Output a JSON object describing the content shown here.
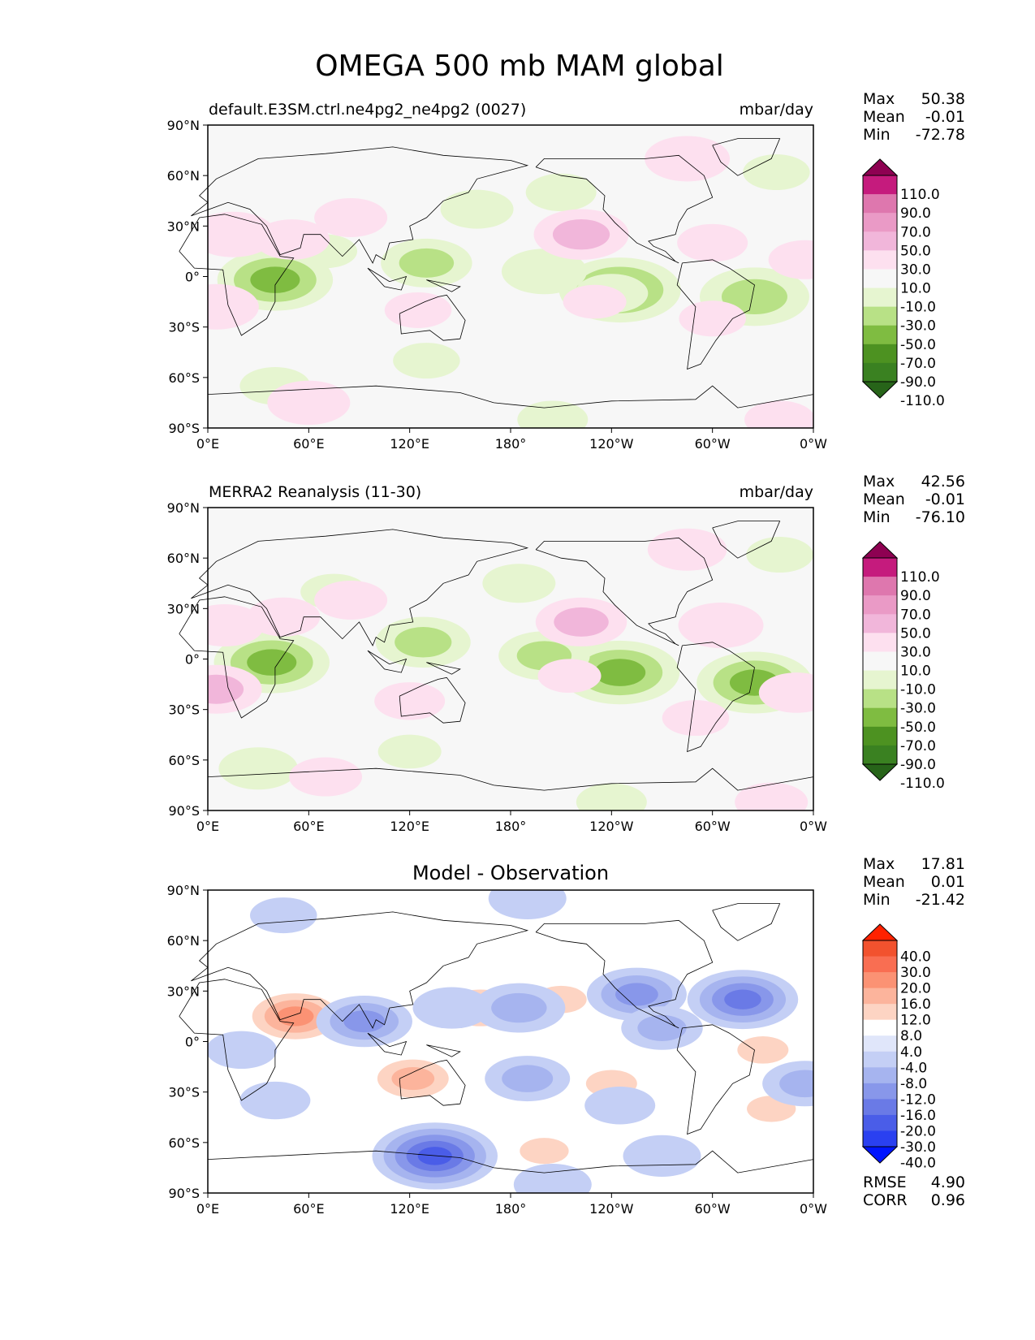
{
  "figure": {
    "title": "OMEGA 500 mb MAM global"
  },
  "axes": {
    "lat_ticks": [
      "90°N",
      "60°N",
      "30°N",
      "0°",
      "30°S",
      "60°S",
      "90°S"
    ],
    "lon_ticks": [
      "0°E",
      "60°E",
      "120°E",
      "180°",
      "120°W",
      "60°W",
      "0°W"
    ]
  },
  "panels": [
    {
      "id": "model",
      "title_left": "default.E3SM.ctrl.ne4pg2_ne4pg2 (0027)",
      "title_center": "",
      "units": "mbar/day",
      "stats": [
        {
          "label": "Max",
          "value": "50.38"
        },
        {
          "label": "Mean",
          "value": "-0.01"
        },
        {
          "label": "Min",
          "value": "-72.78"
        }
      ],
      "colorbar_labels": [
        "110.0",
        "90.0",
        "70.0",
        "50.0",
        "30.0",
        "10.0",
        "-10.0",
        "-30.0",
        "-50.0",
        "-70.0",
        "-90.0",
        "-110.0"
      ]
    },
    {
      "id": "observation",
      "title_left": "MERRA2 Reanalysis (11-30)",
      "title_center": "",
      "units": "mbar/day",
      "stats": [
        {
          "label": "Max",
          "value": "42.56"
        },
        {
          "label": "Mean",
          "value": "-0.01"
        },
        {
          "label": "Min",
          "value": "-76.10"
        }
      ],
      "colorbar_labels": [
        "110.0",
        "90.0",
        "70.0",
        "50.0",
        "30.0",
        "10.0",
        "-10.0",
        "-30.0",
        "-50.0",
        "-70.0",
        "-90.0",
        "-110.0"
      ]
    },
    {
      "id": "difference",
      "title_left": "",
      "title_center": "Model - Observation",
      "units": "",
      "stats": [
        {
          "label": "Max",
          "value": "17.81"
        },
        {
          "label": "Mean",
          "value": "0.01"
        },
        {
          "label": "Min",
          "value": "-21.42"
        }
      ],
      "colorbar_labels": [
        "40.0",
        "30.0",
        "20.0",
        "16.0",
        "12.0",
        "8.0",
        "4.0",
        "-4.0",
        "-8.0",
        "-12.0",
        "-16.0",
        "-20.0",
        "-30.0",
        "-40.0"
      ],
      "extra_stats": [
        {
          "label": "RMSE",
          "value": "4.90"
        },
        {
          "label": "CORR",
          "value": "0.96"
        }
      ]
    }
  ],
  "colors": {
    "omega_scale": [
      "#8e0152",
      "#c51b7d",
      "#de77ae",
      "#ea9ac6",
      "#f1b6da",
      "#fde0ef",
      "#f7f7f7",
      "#e6f5d0",
      "#b8e186",
      "#7fbc41",
      "#4d9221",
      "#3a8121",
      "#276419"
    ],
    "diff_scale": [
      "#ff2200",
      "#f2522e",
      "#f96e52",
      "#fb9274",
      "#fcb49c",
      "#fdd4c3",
      "#ffffff",
      "#e0e6fa",
      "#c4cff5",
      "#a6b4ef",
      "#8897ea",
      "#6a7ae6",
      "#4a5de8",
      "#2a40f0",
      "#0015ff"
    ],
    "land_outline": "#000000"
  },
  "chart_data": [
    {
      "type": "heatmap",
      "title": "default.E3SM.ctrl.ne4pg2_ne4pg2 (0027)",
      "units": "mbar/day",
      "xlabel": "",
      "ylabel": "",
      "xlim": [
        0,
        360
      ],
      "ylim": [
        -90,
        90
      ],
      "x_ticks": [
        "0°E",
        "60°E",
        "120°E",
        "180°",
        "120°W",
        "60°W",
        "0°W"
      ],
      "y_ticks": [
        "90°N",
        "60°N",
        "30°N",
        "0°",
        "30°S",
        "60°S",
        "90°S"
      ],
      "stats": {
        "max": 50.38,
        "mean": -0.01,
        "min": -72.78
      },
      "levels": [
        -110,
        -90,
        -70,
        -50,
        -30,
        -10,
        10,
        30,
        50,
        70,
        90,
        110
      ],
      "features": [
        {
          "lon": 40,
          "lat": -2,
          "value": -55
        },
        {
          "lon": 245,
          "lat": -8,
          "value": -60
        },
        {
          "lon": 325,
          "lat": -12,
          "value": -50
        },
        {
          "lon": 130,
          "lat": 8,
          "value": -35
        },
        {
          "lon": 200,
          "lat": 3,
          "value": -30
        },
        {
          "lon": 160,
          "lat": 40,
          "value": -20
        },
        {
          "lon": 210,
          "lat": 50,
          "value": -18
        },
        {
          "lon": 338,
          "lat": 62,
          "value": -15
        },
        {
          "lon": 40,
          "lat": -65,
          "value": -18
        },
        {
          "lon": 130,
          "lat": -50,
          "value": -15
        },
        {
          "lon": 205,
          "lat": -85,
          "value": -18
        },
        {
          "lon": 240,
          "lat": -10,
          "value": -20
        },
        {
          "lon": 70,
          "lat": 15,
          "value": -12
        },
        {
          "lon": 222,
          "lat": 25,
          "value": 38
        },
        {
          "lon": 15,
          "lat": 25,
          "value": 30
        },
        {
          "lon": 50,
          "lat": 22,
          "value": 22
        },
        {
          "lon": 5,
          "lat": -18,
          "value": 30
        },
        {
          "lon": 125,
          "lat": -20,
          "value": 15
        },
        {
          "lon": 300,
          "lat": 20,
          "value": 18
        },
        {
          "lon": 355,
          "lat": 10,
          "value": 20
        },
        {
          "lon": 300,
          "lat": -25,
          "value": 15
        },
        {
          "lon": 285,
          "lat": 70,
          "value": 30
        },
        {
          "lon": 340,
          "lat": -85,
          "value": 18
        },
        {
          "lon": 60,
          "lat": -75,
          "value": 28
        },
        {
          "lon": 85,
          "lat": 35,
          "value": 20
        },
        {
          "lon": 230,
          "lat": -15,
          "value": 12
        }
      ]
    },
    {
      "type": "heatmap",
      "title": "MERRA2 Reanalysis (11-30)",
      "units": "mbar/day",
      "xlabel": "",
      "ylabel": "",
      "xlim": [
        0,
        360
      ],
      "ylim": [
        -90,
        90
      ],
      "x_ticks": [
        "0°E",
        "60°E",
        "120°E",
        "180°",
        "120°W",
        "60°W",
        "0°W"
      ],
      "y_ticks": [
        "90°N",
        "60°N",
        "30°N",
        "0°",
        "30°S",
        "60°S",
        "90°S"
      ],
      "stats": {
        "max": 42.56,
        "mean": -0.01,
        "min": -76.1
      },
      "levels": [
        -110,
        -90,
        -70,
        -50,
        -30,
        -10,
        10,
        30,
        50,
        70,
        90,
        110
      ],
      "features": [
        {
          "lon": 38,
          "lat": -2,
          "value": -55
        },
        {
          "lon": 245,
          "lat": -8,
          "value": -58
        },
        {
          "lon": 325,
          "lat": -14,
          "value": -55
        },
        {
          "lon": 128,
          "lat": 10,
          "value": -38
        },
        {
          "lon": 200,
          "lat": 2,
          "value": -35
        },
        {
          "lon": 185,
          "lat": 45,
          "value": -20
        },
        {
          "lon": 340,
          "lat": 62,
          "value": -15
        },
        {
          "lon": 30,
          "lat": -65,
          "value": -25
        },
        {
          "lon": 120,
          "lat": -55,
          "value": -12
        },
        {
          "lon": 240,
          "lat": -85,
          "value": -18
        },
        {
          "lon": 75,
          "lat": 40,
          "value": -15
        },
        {
          "lon": 222,
          "lat": 22,
          "value": 35
        },
        {
          "lon": 10,
          "lat": 20,
          "value": 25
        },
        {
          "lon": 45,
          "lat": 25,
          "value": 20
        },
        {
          "lon": 5,
          "lat": -18,
          "value": 35
        },
        {
          "lon": 120,
          "lat": -25,
          "value": 18
        },
        {
          "lon": 305,
          "lat": 20,
          "value": 30
        },
        {
          "lon": 350,
          "lat": -20,
          "value": 22
        },
        {
          "lon": 290,
          "lat": -35,
          "value": 15
        },
        {
          "lon": 285,
          "lat": 65,
          "value": 25
        },
        {
          "lon": 70,
          "lat": -70,
          "value": 20
        },
        {
          "lon": 335,
          "lat": -85,
          "value": 20
        },
        {
          "lon": 85,
          "lat": 35,
          "value": 20
        },
        {
          "lon": 215,
          "lat": -10,
          "value": 12
        }
      ]
    },
    {
      "type": "heatmap",
      "title": "Model - Observation",
      "units": "",
      "xlabel": "",
      "ylabel": "",
      "xlim": [
        0,
        360
      ],
      "ylim": [
        -90,
        90
      ],
      "x_ticks": [
        "0°E",
        "60°E",
        "120°E",
        "180°",
        "120°W",
        "60°W",
        "0°W"
      ],
      "y_ticks": [
        "90°N",
        "60°N",
        "30°N",
        "0°",
        "30°S",
        "60°S",
        "90°S"
      ],
      "stats": {
        "max": 17.81,
        "mean": 0.01,
        "min": -21.42,
        "rmse": 4.9,
        "corr": 0.96
      },
      "levels": [
        -40,
        -30,
        -20,
        -16,
        -12,
        -8,
        -4,
        4,
        8,
        12,
        16,
        20,
        30,
        40
      ],
      "features": [
        {
          "lon": 52,
          "lat": 15,
          "value": 17
        },
        {
          "lon": 122,
          "lat": -22,
          "value": 14
        },
        {
          "lon": 162,
          "lat": 20,
          "value": 13
        },
        {
          "lon": 210,
          "lat": 25,
          "value": 10
        },
        {
          "lon": 330,
          "lat": -5,
          "value": 10
        },
        {
          "lon": 335,
          "lat": -40,
          "value": 9
        },
        {
          "lon": 240,
          "lat": -25,
          "value": 10
        },
        {
          "lon": 200,
          "lat": -65,
          "value": 9
        },
        {
          "lon": 80,
          "lat": -65,
          "value": 8
        },
        {
          "lon": 300,
          "lat": 25,
          "value": 8
        },
        {
          "lon": 8,
          "lat": 28,
          "value": 8
        },
        {
          "lon": 350,
          "lat": -75,
          "value": 7
        },
        {
          "lon": 165,
          "lat": -10,
          "value": 6
        },
        {
          "lon": 135,
          "lat": -68,
          "value": -21
        },
        {
          "lon": 318,
          "lat": 25,
          "value": -17
        },
        {
          "lon": 255,
          "lat": 28,
          "value": -14
        },
        {
          "lon": 93,
          "lat": 12,
          "value": -13
        },
        {
          "lon": 185,
          "lat": 20,
          "value": -12
        },
        {
          "lon": 190,
          "lat": -22,
          "value": -10
        },
        {
          "lon": 355,
          "lat": -25,
          "value": -10
        },
        {
          "lon": 190,
          "lat": 85,
          "value": -8
        },
        {
          "lon": 145,
          "lat": 20,
          "value": -8
        },
        {
          "lon": 20,
          "lat": -5,
          "value": -6
        },
        {
          "lon": 40,
          "lat": -35,
          "value": -6
        },
        {
          "lon": 270,
          "lat": 8,
          "value": -9
        },
        {
          "lon": 270,
          "lat": -68,
          "value": -8
        },
        {
          "lon": 45,
          "lat": 75,
          "value": -5
        },
        {
          "lon": 245,
          "lat": -38,
          "value": -6
        },
        {
          "lon": 205,
          "lat": -85,
          "value": -8
        }
      ]
    }
  ]
}
